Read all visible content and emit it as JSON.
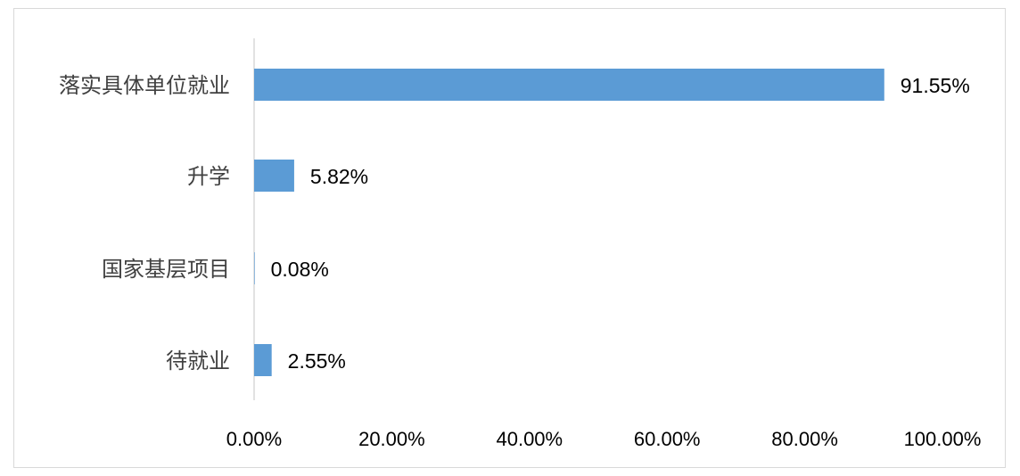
{
  "chart_data": {
    "type": "bar",
    "orientation": "horizontal",
    "categories": [
      "落实具体单位就业",
      "升学",
      "国家基层项目",
      "待就业"
    ],
    "values": [
      91.55,
      5.82,
      0.08,
      2.55
    ],
    "data_labels": [
      "91.55%",
      "5.82%",
      "0.08%",
      "2.55%"
    ],
    "xlim": [
      0,
      100
    ],
    "x_ticks": [
      0,
      20,
      40,
      60,
      80,
      100
    ],
    "x_tick_labels": [
      "0.00%",
      "20.00%",
      "40.00%",
      "60.00%",
      "80.00%",
      "100.00%"
    ],
    "title": "",
    "xlabel": "",
    "ylabel": "",
    "grid": false,
    "legend": "none",
    "bar_color": "#5b9bd5"
  }
}
